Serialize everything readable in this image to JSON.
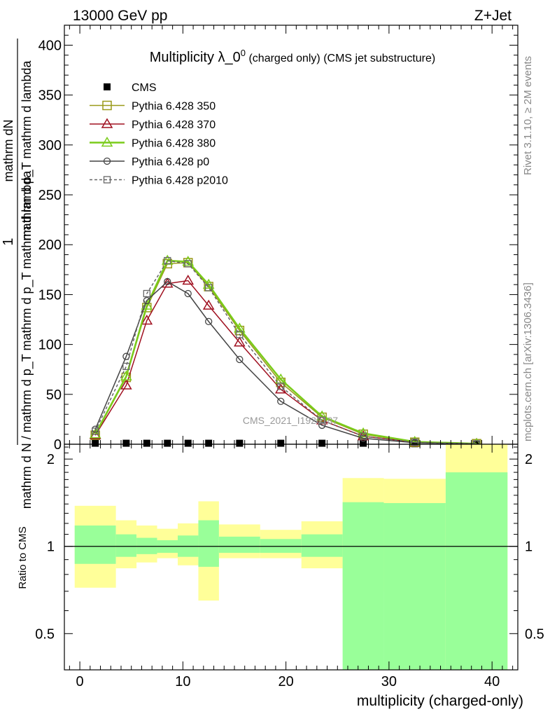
{
  "header": {
    "left": "13000 GeV pp",
    "right": "Z+Jet"
  },
  "side": {
    "rivet": "Rivet 3.1.10, ≥ 2M events",
    "mcplots": "mcplots.cern.ch [arXiv:1306.3436]"
  },
  "chart_data": [
    {
      "type": "line",
      "title": "Multiplicity λ_0",
      "title_sup": "0",
      "title_suffix": " (charged only) (CMS jet substructure)",
      "watermark": "CMS_2021_I1920187",
      "ylabel_num": "mathrm dN",
      "ylabel_den": "mathrm d p_T mathrm d lambda",
      "ylabel_line1": "1",
      "ylabel_line2": "mathrm d N / mathrm d p_T mathrm d p_T mathrm d lambda",
      "xlim": [
        -1.5,
        42.5
      ],
      "ylim": [
        0,
        420
      ],
      "yticks": [
        0,
        50,
        100,
        150,
        200,
        250,
        300,
        350,
        400
      ],
      "x": [
        1.5,
        4.5,
        6.5,
        8.5,
        10.5,
        12.5,
        15.5,
        19.5,
        23.5,
        27.5,
        32.5,
        38.5
      ],
      "series": [
        {
          "name": "CMS",
          "color": "#000000",
          "marker": "square-filled",
          "values": [
            1,
            1,
            1,
            1,
            1,
            1,
            1,
            1,
            1,
            1,
            0.5,
            0.2
          ]
        },
        {
          "name": "Pythia 6.428 350",
          "color": "#9a9a1a",
          "marker": "square-open",
          "dash": "",
          "values": [
            9,
            67,
            137,
            181,
            182,
            158,
            114,
            62,
            27,
            10,
            2,
            0.5
          ]
        },
        {
          "name": "Pythia 6.428 370",
          "color": "#a01020",
          "marker": "triangle-open",
          "dash": "",
          "values": [
            9,
            59,
            124,
            161,
            164,
            139,
            102,
            55,
            24,
            8,
            2,
            0.5
          ]
        },
        {
          "name": "Pythia 6.428 380",
          "color": "#7acc1a",
          "marker": "triangle-open",
          "dash": "",
          "values": [
            10,
            68,
            139,
            184,
            183,
            160,
            116,
            65,
            28,
            11,
            2.5,
            0.5
          ]
        },
        {
          "name": "Pythia 6.428 p0",
          "color": "#444444",
          "marker": "circle-open",
          "dash": "",
          "values": [
            15,
            88,
            144,
            163,
            151,
            123,
            85,
            43,
            19,
            6,
            1.5,
            0.3
          ]
        },
        {
          "name": "Pythia 6.428 p2010",
          "color": "#666666",
          "marker": "square-open-small",
          "dash": "4,3",
          "values": [
            13,
            78,
            151,
            184,
            181,
            157,
            110,
            58,
            24,
            8,
            2,
            0.4
          ]
        }
      ]
    },
    {
      "type": "area",
      "ylabel": "Ratio to CMS",
      "xlabel": "multiplicity (charged-only)",
      "xlim": [
        -1.5,
        42.5
      ],
      "ylim": [
        0.375,
        2.25
      ],
      "yticks": [
        0.5,
        1,
        2
      ],
      "xticks": [
        0,
        10,
        20,
        30,
        40
      ],
      "bins": [
        {
          "lo": -0.5,
          "hi": 3.5,
          "green": [
            0.87,
            1.18
          ],
          "yellow": [
            0.72,
            1.38
          ]
        },
        {
          "lo": 3.5,
          "hi": 5.5,
          "green": [
            0.92,
            1.1
          ],
          "yellow": [
            0.84,
            1.23
          ]
        },
        {
          "lo": 5.5,
          "hi": 7.5,
          "green": [
            0.94,
            1.07
          ],
          "yellow": [
            0.88,
            1.18
          ]
        },
        {
          "lo": 7.5,
          "hi": 9.5,
          "green": [
            0.95,
            1.05
          ],
          "yellow": [
            0.91,
            1.15
          ]
        },
        {
          "lo": 9.5,
          "hi": 11.5,
          "green": [
            0.92,
            1.09
          ],
          "yellow": [
            0.86,
            1.2
          ]
        },
        {
          "lo": 11.5,
          "hi": 13.5,
          "green": [
            0.85,
            1.23
          ],
          "yellow": [
            0.65,
            1.43
          ]
        },
        {
          "lo": 13.5,
          "hi": 17.5,
          "green": [
            0.95,
            1.08
          ],
          "yellow": [
            0.91,
            1.19
          ]
        },
        {
          "lo": 17.5,
          "hi": 21.5,
          "green": [
            0.95,
            1.06
          ],
          "yellow": [
            0.91,
            1.14
          ]
        },
        {
          "lo": 21.5,
          "hi": 25.5,
          "green": [
            0.92,
            1.1
          ],
          "yellow": [
            0.84,
            1.22
          ]
        },
        {
          "lo": 25.5,
          "hi": 29.5,
          "green": [
            0.2,
            1.42
          ],
          "yellow": [
            0.69,
            1.72
          ]
        },
        {
          "lo": 29.5,
          "hi": 35.5,
          "green": [
            0.2,
            1.41
          ],
          "yellow": [
            0.7,
            1.71
          ]
        },
        {
          "lo": 35.5,
          "hi": 41.5,
          "green": [
            0.2,
            1.8
          ],
          "yellow": [
            0.2,
            3.0
          ]
        }
      ]
    }
  ]
}
